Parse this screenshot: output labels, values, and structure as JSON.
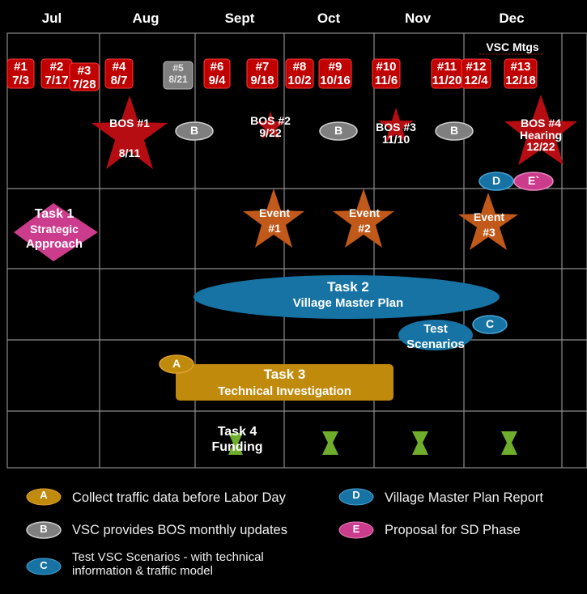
{
  "colors": {
    "background": "#000000",
    "grid": "#8c8c8c",
    "meeting_red": "#c00000",
    "meeting_gray": "#7f7f7f",
    "star_red": "#b50d12",
    "star_orange": "#c0591a",
    "diamond_pink": "#cc3c8c",
    "ellipse_blue": "#1673a4",
    "bar_gold": "#c08a0c",
    "hourglass_green": "#6fae2c"
  },
  "months": [
    "Jul",
    "Aug",
    "Sept",
    "Oct",
    "Nov",
    "Dec"
  ],
  "vsc_header": "VSC Mtgs",
  "meetings": [
    {
      "num": "#1",
      "date": "7/3",
      "style": "red"
    },
    {
      "num": "#2",
      "date": "7/17",
      "style": "red"
    },
    {
      "num": "#3",
      "date": "7/28",
      "style": "red"
    },
    {
      "num": "#4",
      "date": "8/7",
      "style": "red"
    },
    {
      "num": "#5",
      "date": "8/21",
      "style": "gray"
    },
    {
      "num": "#6",
      "date": "9/4",
      "style": "red"
    },
    {
      "num": "#7",
      "date": "9/18",
      "style": "red"
    },
    {
      "num": "#8",
      "date": "10/2",
      "style": "red"
    },
    {
      "num": "#9",
      "date": "10/16",
      "style": "red"
    },
    {
      "num": "#10",
      "date": "11/6",
      "style": "red"
    },
    {
      "num": "#11",
      "date": "11/20",
      "style": "red"
    },
    {
      "num": "#12",
      "date": "12/4",
      "style": "red"
    },
    {
      "num": "#13",
      "date": "12/18",
      "style": "red"
    }
  ],
  "bos": [
    {
      "line1": "BOS #1",
      "line2": "",
      "line3": "8/11"
    },
    {
      "line1": "BOS #2",
      "line2": "9/22",
      "line3": ""
    },
    {
      "line1": "BOS #3",
      "line2": "11/10",
      "line3": ""
    },
    {
      "line1": "BOS #4",
      "line2": "Hearing",
      "line3": "12/22"
    }
  ],
  "markers": {
    "A": "A",
    "B": "B",
    "C": "C",
    "D": "D",
    "E": "E`"
  },
  "events": [
    {
      "line1": "Event",
      "line2": "#1"
    },
    {
      "line1": "Event",
      "line2": "#2"
    },
    {
      "line1": "Event",
      "line2": "#3"
    }
  ],
  "task1": {
    "line1": "Task 1",
    "line2": "Strategic",
    "line3": "Approach"
  },
  "task2": {
    "line1": "Task 2",
    "line2": "Village Master Plan"
  },
  "test_scenarios": {
    "line1": "Test",
    "line2": "Scenarios"
  },
  "task3": {
    "line1": "Task 3",
    "line2": "Technical Investigation"
  },
  "task4": {
    "line1": "Task 4",
    "line2": "Funding"
  },
  "legend": {
    "A": {
      "marker": "A",
      "text": "Collect  traffic data before Labor Day"
    },
    "B": {
      "marker": "B",
      "text": "VSC provides BOS monthly updates"
    },
    "C": {
      "marker": "C",
      "text": "Test VSC Scenarios - with technical information & traffic model"
    },
    "D": {
      "marker": "D",
      "text": "Village Master Plan Report"
    },
    "E": {
      "marker": "E",
      "text": "Proposal for SD Phase"
    }
  }
}
